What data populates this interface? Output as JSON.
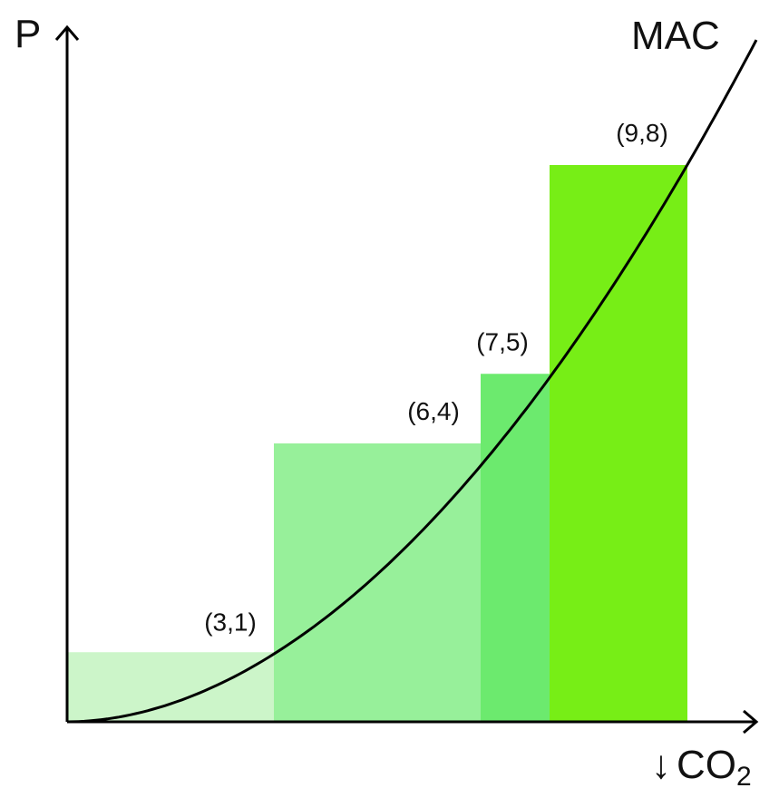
{
  "chart_data": {
    "type": "bar",
    "title": "",
    "ylabel": "P",
    "xlabel_arrow": "↓",
    "xlabel_main": "CO",
    "xlabel_sub": "2",
    "xlim": [
      0,
      10.2
    ],
    "ylim": [
      0,
      10
    ],
    "grid": false,
    "bars": [
      {
        "x_start": 0,
        "x_end": 3,
        "value": 1,
        "label": "(3,1)",
        "color": "#ccf5c9"
      },
      {
        "x_start": 3,
        "x_end": 6,
        "value": 4,
        "label": "(6,4)",
        "color": "#97f09a"
      },
      {
        "x_start": 6,
        "x_end": 7,
        "value": 5,
        "label": "(7,5)",
        "color": "#6cea6e"
      },
      {
        "x_start": 7,
        "x_end": 9,
        "value": 8,
        "label": "(9,8)",
        "color": "#77ee16"
      }
    ],
    "curve": {
      "name": "MAC",
      "color": "#000000",
      "x_max": 10.0
    }
  }
}
